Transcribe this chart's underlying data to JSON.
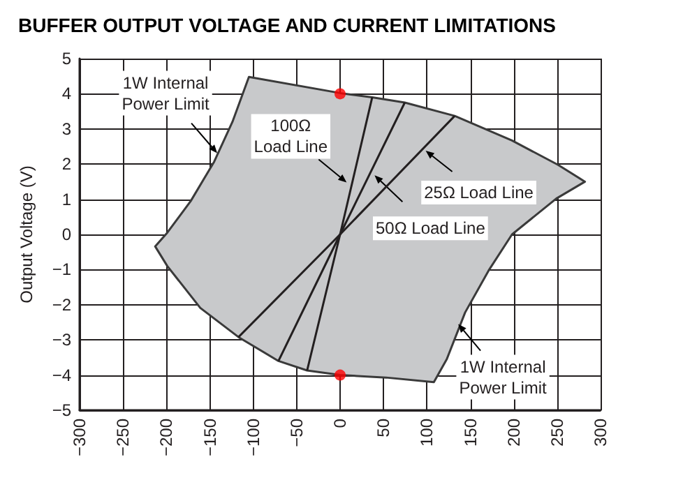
{
  "chart_data": {
    "type": "line",
    "title": "BUFFER OUTPUT VOLTAGE AND CURRENT LIMITATIONS",
    "ylabel": "Output Voltage (V)",
    "xlim": [
      -300,
      300
    ],
    "xticks": [
      {
        "value": -300,
        "label": "−300"
      },
      {
        "value": -250,
        "label": "−250"
      },
      {
        "value": -200,
        "label": "−200"
      },
      {
        "value": -150,
        "label": "−150"
      },
      {
        "value": -100,
        "label": "−100"
      },
      {
        "value": -50,
        "label": "−50"
      },
      0,
      50,
      100,
      150,
      200,
      250,
      300
    ],
    "ylim": [
      -5,
      5
    ],
    "yticks": [
      {
        "value": -5,
        "label": "−5"
      },
      {
        "value": -4,
        "label": "−4"
      },
      {
        "value": -3,
        "label": "−3"
      },
      {
        "value": -2,
        "label": "−2"
      },
      {
        "value": -1,
        "label": "−1"
      },
      0,
      1,
      2,
      3,
      4,
      5
    ],
    "grid": true,
    "marker": "none",
    "line_style": "solid",
    "series": [
      {
        "type": "area",
        "color": "#c8c9cb",
        "x": [
          -105,
          0,
          37,
          74.5,
          132,
          198,
          251,
          282,
          249,
          198,
          171,
          144,
          123,
          108,
          53,
          0,
          -38,
          -71,
          -117,
          -161,
          -199,
          -213,
          -199,
          -172,
          -145,
          -124,
          -105
        ],
        "values": [
          4.48,
          4.02,
          3.9,
          3.75,
          3.37,
          2.67,
          1.98,
          1.5,
          1.02,
          0,
          -1.03,
          -2.22,
          -3.54,
          -4.2,
          -4.07,
          -4.0,
          -3.87,
          -3.6,
          -2.92,
          -2.09,
          -0.9,
          -0.34,
          0.05,
          0.95,
          2.07,
          3.2,
          4.48
        ]
      },
      {
        "color": "#231f20",
        "x": [
          -117,
          0,
          132
        ],
        "values": [
          -2.92,
          0,
          3.37
        ]
      },
      {
        "color": "#231f20",
        "x": [
          -71,
          0,
          74.5
        ],
        "values": [
          -3.6,
          0,
          3.75
        ]
      },
      {
        "color": "#231f20",
        "x": [
          -38,
          0,
          37
        ],
        "values": [
          -3.87,
          0,
          3.9
        ]
      },
      {
        "type": "scatter",
        "color": "#ff0000",
        "marker": "circle",
        "x": [
          0,
          0
        ],
        "values": [
          4,
          -4
        ]
      }
    ],
    "annotations": [
      {
        "text": "1W Internal\nPower Limit",
        "x": -141.5,
        "y": 2.31
      },
      {
        "text": "100Ω\nLoad Line",
        "x": 7.5,
        "y": 1.48
      },
      {
        "text": "25Ω Load Line",
        "x": 98.6,
        "y": 2.38
      },
      {
        "text": "50Ω Load Line",
        "x": 39.7,
        "y": 1.68
      },
      {
        "text": "1W Internal\nPower Limit",
        "x": 136,
        "y": -2.55
      }
    ]
  }
}
